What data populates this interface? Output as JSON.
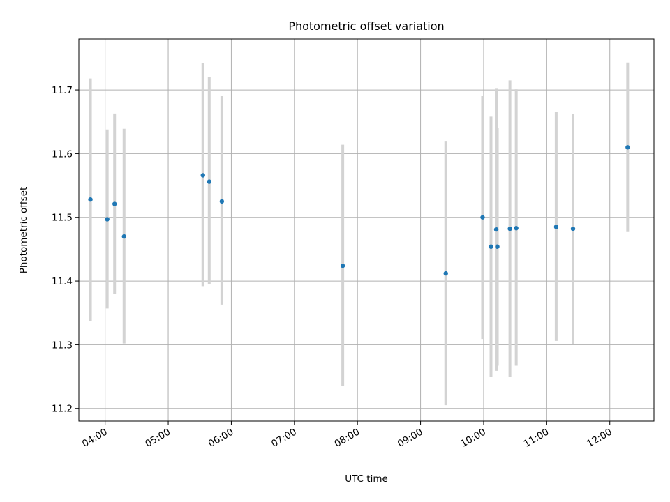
{
  "chart_data": {
    "type": "scatter",
    "title": "Photometric offset variation",
    "xlabel": "UTC time",
    "ylabel": "Photometric offset",
    "x_ticks": [
      "04:00",
      "05:00",
      "06:00",
      "07:00",
      "08:00",
      "09:00",
      "10:00",
      "11:00",
      "12:00"
    ],
    "y_ticks": [
      "11.2",
      "11.3",
      "11.4",
      "11.5",
      "11.6",
      "11.7"
    ],
    "xlim": [
      "03:35",
      "12:42"
    ],
    "ylim": [
      11.18,
      11.78
    ],
    "grid": true,
    "point_color": "#1f77b4",
    "errorbar_color": "#d3d3d3",
    "points": [
      {
        "x": "03:46",
        "y": 11.528,
        "err_low": 11.337,
        "err_high": 11.718
      },
      {
        "x": "04:02",
        "y": 11.497,
        "err_low": 11.357,
        "err_high": 11.638
      },
      {
        "x": "04:09",
        "y": 11.521,
        "err_low": 11.38,
        "err_high": 11.663
      },
      {
        "x": "04:18",
        "y": 11.47,
        "err_low": 11.302,
        "err_high": 11.639
      },
      {
        "x": "05:33",
        "y": 11.566,
        "err_low": 11.392,
        "err_high": 11.742
      },
      {
        "x": "05:39",
        "y": 11.556,
        "err_low": 11.395,
        "err_high": 11.72
      },
      {
        "x": "05:51",
        "y": 11.525,
        "err_low": 11.363,
        "err_high": 11.691
      },
      {
        "x": "07:46",
        "y": 11.424,
        "err_low": 11.235,
        "err_high": 11.614
      },
      {
        "x": "09:24",
        "y": 11.412,
        "err_low": 11.205,
        "err_high": 11.62
      },
      {
        "x": "09:59",
        "y": 11.5,
        "err_low": 11.309,
        "err_high": 11.691
      },
      {
        "x": "10:07",
        "y": 11.454,
        "err_low": 11.25,
        "err_high": 11.658
      },
      {
        "x": "10:12",
        "y": 11.481,
        "err_low": 11.259,
        "err_high": 11.703
      },
      {
        "x": "10:13",
        "y": 11.454,
        "err_low": 11.267,
        "err_high": 11.64
      },
      {
        "x": "10:25",
        "y": 11.482,
        "err_low": 11.249,
        "err_high": 11.715
      },
      {
        "x": "10:31",
        "y": 11.483,
        "err_low": 11.267,
        "err_high": 11.701
      },
      {
        "x": "11:09",
        "y": 11.485,
        "err_low": 11.306,
        "err_high": 11.665
      },
      {
        "x": "11:25",
        "y": 11.482,
        "err_low": 11.301,
        "err_high": 11.662
      },
      {
        "x": "12:17",
        "y": 11.61,
        "err_low": 11.477,
        "err_high": 11.743
      }
    ]
  }
}
